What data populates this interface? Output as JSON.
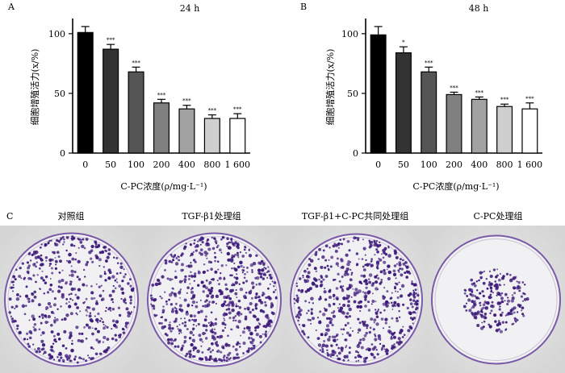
{
  "chart_data": [
    {
      "panel": "A",
      "type": "bar",
      "title": "24 h",
      "xlabel": "C-PC浓度(ρ/mg·L⁻¹)",
      "ylabel": "细胞增殖活力(x/%)",
      "categories": [
        "0",
        "50",
        "100",
        "200",
        "400",
        "800",
        "1 600"
      ],
      "values": [
        101,
        87,
        68,
        42,
        37,
        29,
        29
      ],
      "errors": [
        5,
        4,
        4,
        3,
        3,
        3,
        4
      ],
      "significance": [
        "",
        "***",
        "***",
        "***",
        "***",
        "***",
        "***"
      ],
      "bar_colors": [
        "#000000",
        "#333333",
        "#555555",
        "#808080",
        "#a2a2a2",
        "#cfcfcf",
        "#ffffff"
      ],
      "ylim": [
        0,
        110
      ],
      "yticks": [
        0,
        50,
        100
      ],
      "grid": false
    },
    {
      "panel": "B",
      "type": "bar",
      "title": "48  h",
      "xlabel": "C-PC浓度(ρ/mg·L⁻¹)",
      "ylabel": "细胞增殖活力(x/%)",
      "categories": [
        "0",
        "50",
        "100",
        "200",
        "400",
        "800",
        "1 600"
      ],
      "values": [
        99,
        84,
        68,
        49,
        45,
        39,
        37
      ],
      "errors": [
        7,
        5,
        4,
        2,
        2,
        2,
        5
      ],
      "significance": [
        "",
        "*",
        "***",
        "***",
        "***",
        "***",
        "***"
      ],
      "bar_colors": [
        "#000000",
        "#333333",
        "#555555",
        "#808080",
        "#a2a2a2",
        "#cfcfcf",
        "#ffffff"
      ],
      "ylim": [
        0,
        110
      ],
      "yticks": [
        0,
        50,
        100
      ],
      "grid": false
    }
  ],
  "panel_c": {
    "letter": "C",
    "labels": [
      "对照组",
      "TGF-β1处理组",
      "TGF-β1+C-PC共同处理组",
      "C-PC处理组"
    ],
    "colony_density": [
      0.55,
      0.8,
      0.7,
      0.3
    ],
    "colony_color": "#3d1a7a",
    "dish_edge_color": "#7a5aa8"
  }
}
